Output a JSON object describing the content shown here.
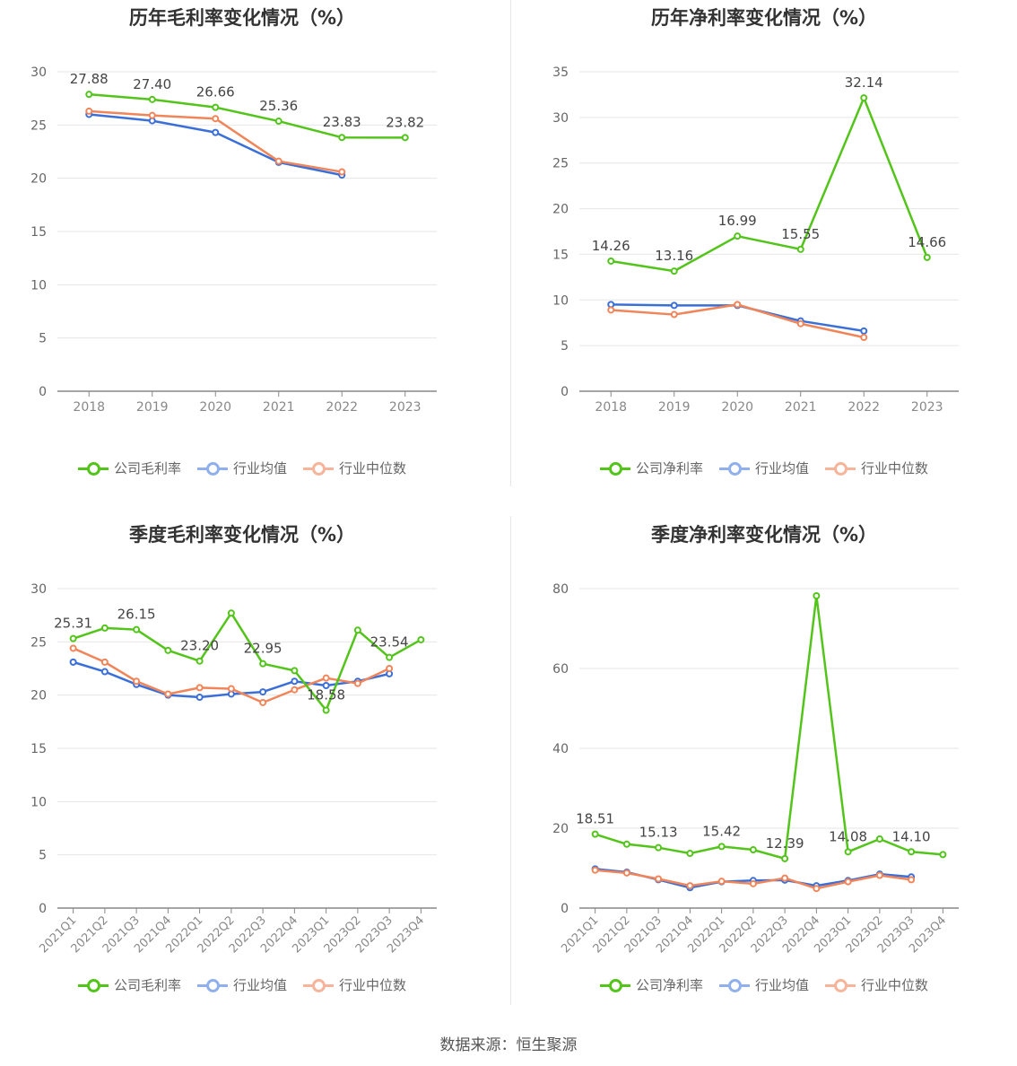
{
  "footer": "数据来源：恒生聚源",
  "colors": {
    "company": "#52c41a",
    "avg": "#3b6fd8",
    "median": "#f0855a",
    "grid": "#e6e6e6",
    "axis": "#888888"
  },
  "chart_data": [
    {
      "type": "line",
      "title": "历年毛利率变化情况（%）",
      "categories": [
        "2018",
        "2019",
        "2020",
        "2021",
        "2022",
        "2023"
      ],
      "ylim": [
        0,
        30
      ],
      "yticks": [
        0,
        5,
        10,
        15,
        20,
        25,
        30
      ],
      "grid": true,
      "legend_position": "bottom",
      "series": [
        {
          "name": "公司毛利率",
          "values": [
            27.88,
            27.4,
            26.66,
            25.36,
            23.83,
            23.82
          ],
          "labels": [
            "27.88",
            "27.40",
            "26.66",
            "25.36",
            "23.83",
            "23.82"
          ]
        },
        {
          "name": "行业均值",
          "values": [
            26.0,
            25.4,
            24.3,
            21.5,
            20.3,
            null
          ]
        },
        {
          "name": "行业中位数",
          "values": [
            26.3,
            25.9,
            25.6,
            21.6,
            20.6,
            null
          ]
        }
      ]
    },
    {
      "type": "line",
      "title": "历年净利率变化情况（%）",
      "categories": [
        "2018",
        "2019",
        "2020",
        "2021",
        "2022",
        "2023"
      ],
      "ylim": [
        0,
        35
      ],
      "yticks": [
        0,
        5,
        10,
        15,
        20,
        25,
        30,
        35
      ],
      "grid": true,
      "legend_position": "bottom",
      "series": [
        {
          "name": "公司净利率",
          "values": [
            14.26,
            13.16,
            16.99,
            15.55,
            32.14,
            14.66
          ],
          "labels": [
            "14.26",
            "13.16",
            "16.99",
            "15.55",
            "32.14",
            "14.66"
          ]
        },
        {
          "name": "行业均值",
          "values": [
            9.5,
            9.4,
            9.4,
            7.7,
            6.6,
            null
          ]
        },
        {
          "name": "行业中位数",
          "values": [
            8.9,
            8.4,
            9.5,
            7.4,
            5.9,
            null
          ]
        }
      ]
    },
    {
      "type": "line",
      "title": "季度毛利率变化情况（%）",
      "categories": [
        "2021Q1",
        "2021Q2",
        "2021Q3",
        "2021Q4",
        "2022Q1",
        "2022Q2",
        "2022Q3",
        "2022Q4",
        "2023Q1",
        "2023Q2",
        "2023Q3",
        "2023Q4"
      ],
      "ylim": [
        0,
        30
      ],
      "yticks": [
        0,
        5,
        10,
        15,
        20,
        25,
        30
      ],
      "grid": true,
      "legend_position": "bottom",
      "series": [
        {
          "name": "公司毛利率",
          "values": [
            25.31,
            26.3,
            26.15,
            24.2,
            23.2,
            27.7,
            22.95,
            22.3,
            18.58,
            26.1,
            23.54,
            25.2
          ],
          "labels": [
            "25.31",
            "",
            "26.15",
            "",
            "23.20",
            "",
            "22.95",
            "",
            "18.58",
            "",
            "23.54",
            ""
          ]
        },
        {
          "name": "行业均值",
          "values": [
            23.1,
            22.2,
            21.0,
            20.0,
            19.8,
            20.1,
            20.3,
            21.3,
            20.9,
            21.3,
            22.0,
            null
          ]
        },
        {
          "name": "行业中位数",
          "values": [
            24.4,
            23.1,
            21.3,
            20.1,
            20.7,
            20.6,
            19.3,
            20.5,
            21.6,
            21.1,
            22.5,
            null
          ]
        }
      ]
    },
    {
      "type": "line",
      "title": "季度净利率变化情况（%）",
      "categories": [
        "2021Q1",
        "2021Q2",
        "2021Q3",
        "2021Q4",
        "2022Q1",
        "2022Q2",
        "2022Q3",
        "2022Q4",
        "2023Q1",
        "2023Q2",
        "2023Q3",
        "2023Q4"
      ],
      "ylim": [
        0,
        80
      ],
      "yticks": [
        0,
        20,
        40,
        60,
        80
      ],
      "grid": true,
      "legend_position": "bottom",
      "series": [
        {
          "name": "公司净利率",
          "values": [
            18.51,
            16.0,
            15.13,
            13.7,
            15.42,
            14.6,
            12.39,
            78.2,
            14.08,
            17.3,
            14.1,
            13.4
          ],
          "labels": [
            "18.51",
            "",
            "15.13",
            "",
            "15.42",
            "",
            "12.39",
            "",
            "14.08",
            "",
            "14.10",
            ""
          ]
        },
        {
          "name": "行业均值",
          "values": [
            9.8,
            9.0,
            7.1,
            5.1,
            6.6,
            6.9,
            7.0,
            5.6,
            6.9,
            8.5,
            7.8,
            null
          ]
        },
        {
          "name": "行业中位数",
          "values": [
            9.5,
            8.8,
            7.3,
            5.6,
            6.7,
            6.1,
            7.5,
            4.9,
            6.6,
            8.2,
            7.1,
            null
          ]
        }
      ]
    }
  ]
}
